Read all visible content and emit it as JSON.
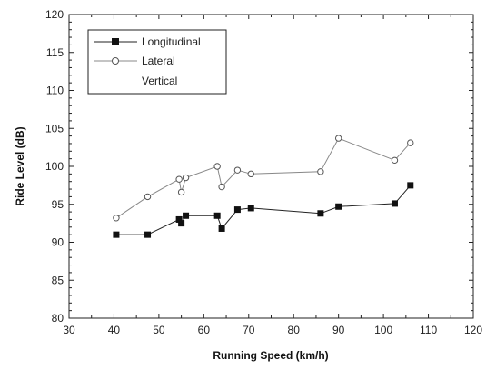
{
  "chart_data": {
    "type": "line",
    "xlabel": "Running Speed (km/h)",
    "ylabel": "Ride Level (dB)",
    "xlim": [
      30,
      120
    ],
    "ylim": [
      80,
      120
    ],
    "xticks": [
      30,
      40,
      50,
      60,
      70,
      80,
      90,
      100,
      110,
      120
    ],
    "yticks": [
      80,
      85,
      90,
      95,
      100,
      105,
      110,
      115,
      120
    ],
    "grid": false,
    "legend_position": "top-left",
    "series": [
      {
        "name": "Longitudinal",
        "marker": "filled-square",
        "x": [
          40.5,
          47.5,
          54.5,
          55.0,
          56.0,
          63.0,
          64.0,
          67.5,
          70.5,
          86.0,
          90.0,
          102.5,
          106.0
        ],
        "y": [
          91.0,
          91.0,
          93.0,
          92.5,
          93.5,
          93.5,
          91.8,
          94.3,
          94.5,
          93.8,
          94.7,
          95.1,
          97.5
        ]
      },
      {
        "name": "Lateral",
        "marker": "open-circle",
        "x": [
          40.5,
          47.5,
          54.5,
          55.0,
          56.0,
          63.0,
          64.0,
          67.5,
          70.5,
          86.0,
          90.0,
          102.5,
          106.0
        ],
        "y": [
          93.2,
          96.0,
          98.3,
          96.6,
          98.5,
          100.0,
          97.3,
          99.5,
          99.0,
          99.3,
          103.7,
          100.8,
          103.1
        ]
      },
      {
        "name": "Vertical",
        "marker": "none",
        "x": [],
        "y": []
      }
    ]
  }
}
